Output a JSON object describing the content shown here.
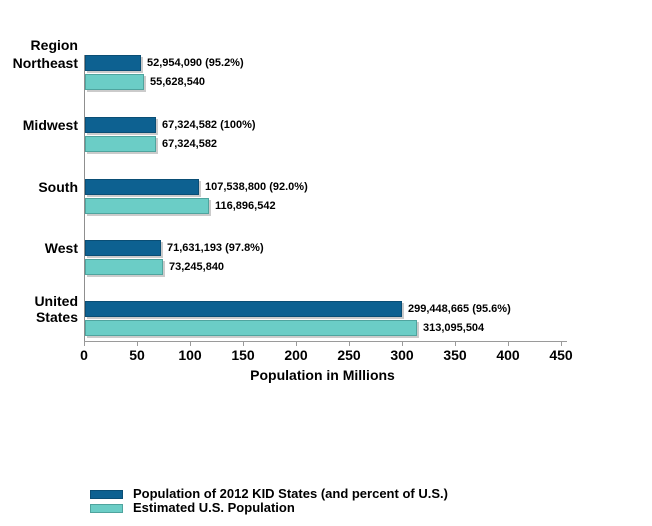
{
  "chart_data": {
    "type": "bar",
    "orientation": "horizontal",
    "xlabel": "Population in Millions",
    "xlim": [
      0,
      450
    ],
    "xticks": [
      0,
      50,
      100,
      150,
      200,
      250,
      300,
      350,
      400,
      450
    ],
    "grid": false,
    "legend_position": "bottom-left",
    "category_header": "Region",
    "categories": [
      "Northeast",
      "Midwest",
      "South",
      "West",
      "United States"
    ],
    "series": [
      {
        "name": "Population of 2012 KID States (and percent of U.S.)",
        "color": "#0d6191",
        "border_color": "#0a4e75",
        "values": [
          52954090,
          67324582,
          107538800,
          71631193,
          299448665
        ],
        "bar_labels": [
          "52,954,090 (95.2%)",
          "67,324,582 (100%)",
          "107,538,800 (92.0%)",
          "71,631,193 (97.8%)",
          "299,448,665 (95.6%)"
        ]
      },
      {
        "name": "Estimated U.S. Population",
        "color": "#6bcdc6",
        "border_color": "#4fa49e",
        "values": [
          55628540,
          67324582,
          116896542,
          73245840,
          313095504
        ],
        "bar_labels": [
          "55,628,540",
          "67,324,582",
          "116,896,542",
          "73,245,840",
          "313,095,504"
        ]
      }
    ],
    "colors": {
      "axis": "#9a9a9a",
      "text": "#000000"
    }
  }
}
